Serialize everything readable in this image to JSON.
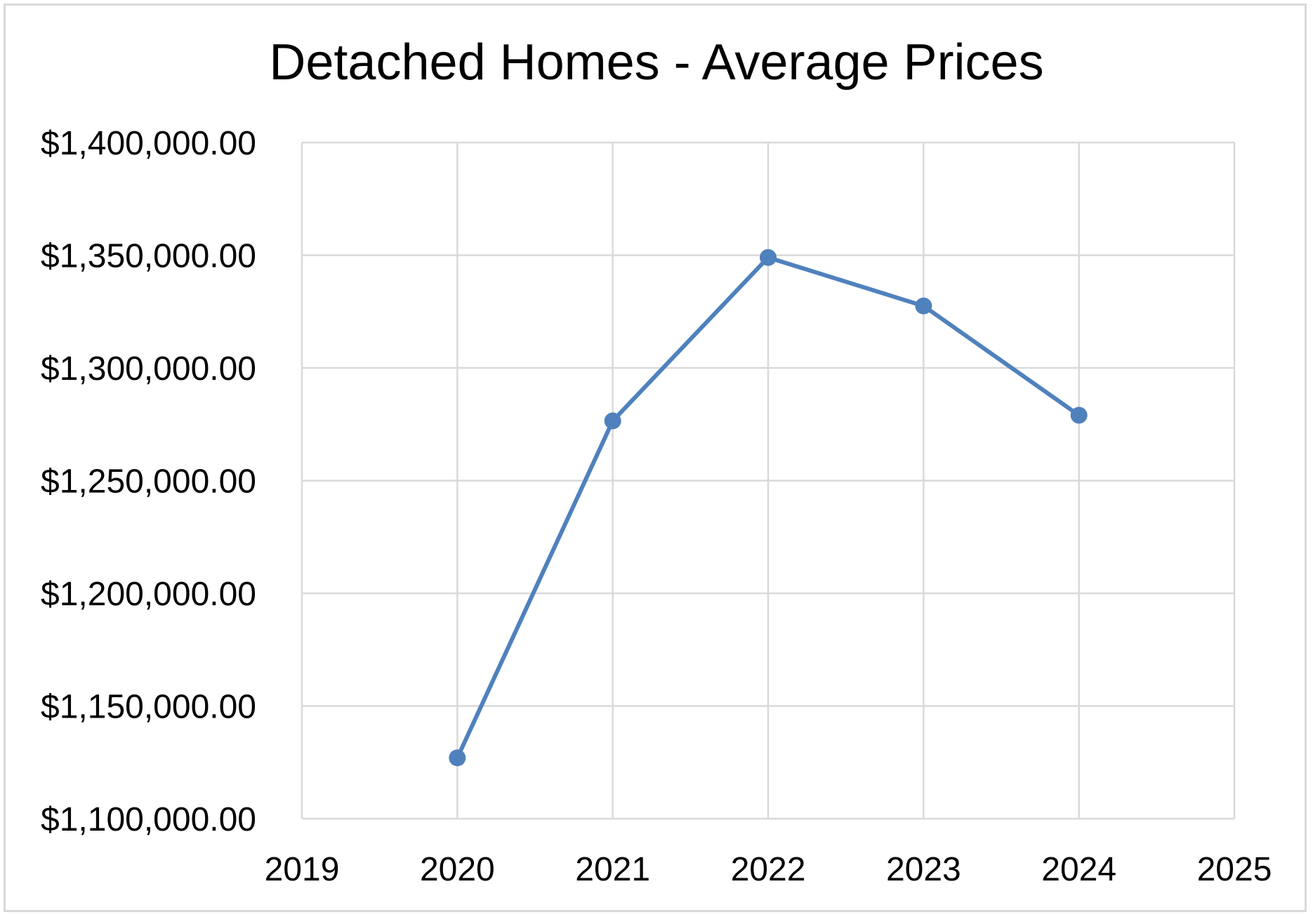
{
  "chart_data": {
    "type": "line",
    "title": "Detached Homes - Average Prices",
    "xlabel": "",
    "ylabel": "",
    "x_ticks": [
      2019,
      2020,
      2021,
      2022,
      2023,
      2024,
      2025
    ],
    "y_ticks": [
      1100000,
      1150000,
      1200000,
      1250000,
      1300000,
      1350000,
      1400000
    ],
    "y_tick_labels": [
      "$1,100,000.00",
      "$1,150,000.00",
      "$1,200,000.00",
      "$1,250,000.00",
      "$1,300,000.00",
      "$1,350,000.00",
      "$1,400,000.00"
    ],
    "xlim": [
      2019,
      2025
    ],
    "ylim": [
      1100000,
      1400000
    ],
    "grid": true,
    "legend": "none",
    "series": [
      {
        "color": "#4f81bd",
        "points": [
          {
            "x": 2020,
            "y": 1127000
          },
          {
            "x": 2021,
            "y": 1276500
          },
          {
            "x": 2022,
            "y": 1349000
          },
          {
            "x": 2023,
            "y": 1327500
          },
          {
            "x": 2024,
            "y": 1279000
          }
        ]
      }
    ],
    "gridline_color": "#d9d9d9"
  }
}
